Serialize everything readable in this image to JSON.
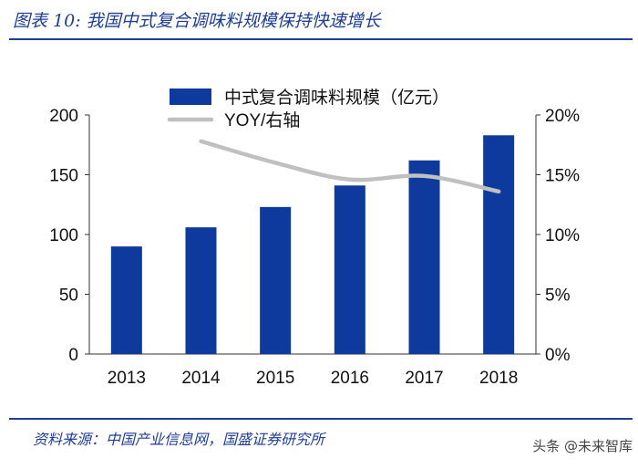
{
  "figure": {
    "title": "图表 10:  我国中式复合调味料规模保持快速增长",
    "source": "资料来源：中国产业信息网，国盛证券研究所",
    "watermark": "头条 @未来智库"
  },
  "colors": {
    "accent": "#1f3f96",
    "bar": "#0d3a9c",
    "line": "#c0c0c0",
    "axis": "#333333"
  },
  "chart_data": {
    "type": "bar",
    "categories": [
      "2013",
      "2014",
      "2015",
      "2016",
      "2017",
      "2018"
    ],
    "series": [
      {
        "name": "中式复合调味料规模（亿元）",
        "type": "bar",
        "axis": "left",
        "values": [
          90,
          106,
          123,
          141,
          162,
          183
        ]
      },
      {
        "name": "YOY/右轴",
        "type": "line",
        "axis": "right",
        "values": [
          null,
          17.8,
          16.0,
          14.6,
          14.9,
          13.6
        ]
      }
    ],
    "y_left": {
      "min": 0,
      "max": 200,
      "ticks": [
        "0",
        "50",
        "100",
        "150",
        "200"
      ]
    },
    "y_right": {
      "min": 0,
      "max": 20,
      "ticks": [
        "0%",
        "5%",
        "10%",
        "15%",
        "20%"
      ]
    },
    "grid": false,
    "legend_position": "top"
  }
}
